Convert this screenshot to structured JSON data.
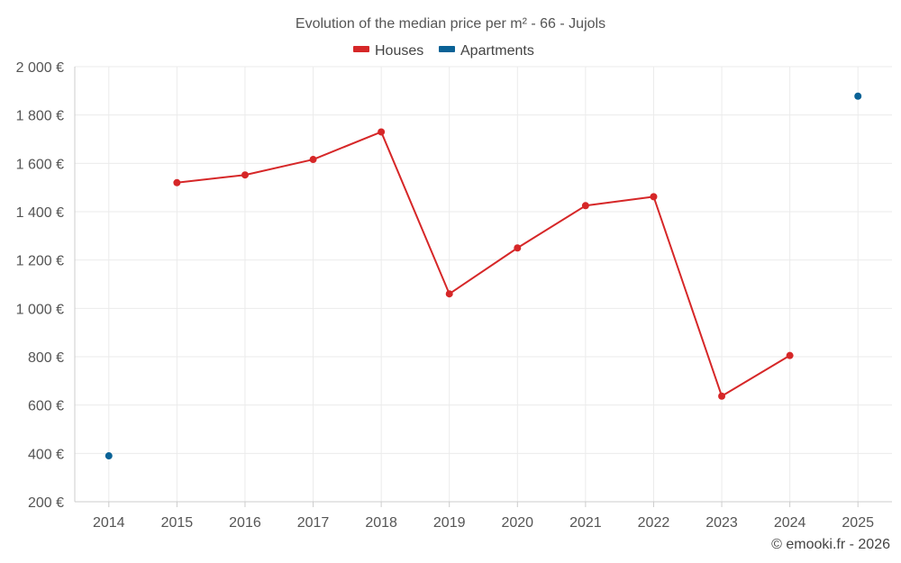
{
  "chart_data": {
    "type": "line",
    "title": "Evolution of the median price per m² - 66 - Jujols",
    "categories": [
      "2014",
      "2015",
      "2016",
      "2017",
      "2018",
      "2019",
      "2020",
      "2021",
      "2022",
      "2023",
      "2024",
      "2025"
    ],
    "series": [
      {
        "name": "Houses",
        "color": "#d62728",
        "values": [
          null,
          1520,
          1552,
          1616,
          1730,
          1060,
          1250,
          1425,
          1462,
          637,
          805,
          null
        ]
      },
      {
        "name": "Apartments",
        "color": "#0a6296",
        "values": [
          390,
          null,
          null,
          null,
          null,
          null,
          null,
          null,
          null,
          null,
          null,
          1878
        ]
      }
    ],
    "y_ticks": [
      "2 000 €",
      "1 800 €",
      "1 600 €",
      "1 400 €",
      "1 200 €",
      "1 000 €",
      "800 €",
      "600 €",
      "400 €",
      "200 €"
    ],
    "y_tick_values": [
      2000,
      1800,
      1600,
      1400,
      1200,
      1000,
      800,
      600,
      400,
      200
    ],
    "ylim": [
      200,
      2000
    ],
    "xlabel": "",
    "ylabel": "",
    "legend_position": "top-center",
    "credit": "© emooki.fr - 2026"
  }
}
